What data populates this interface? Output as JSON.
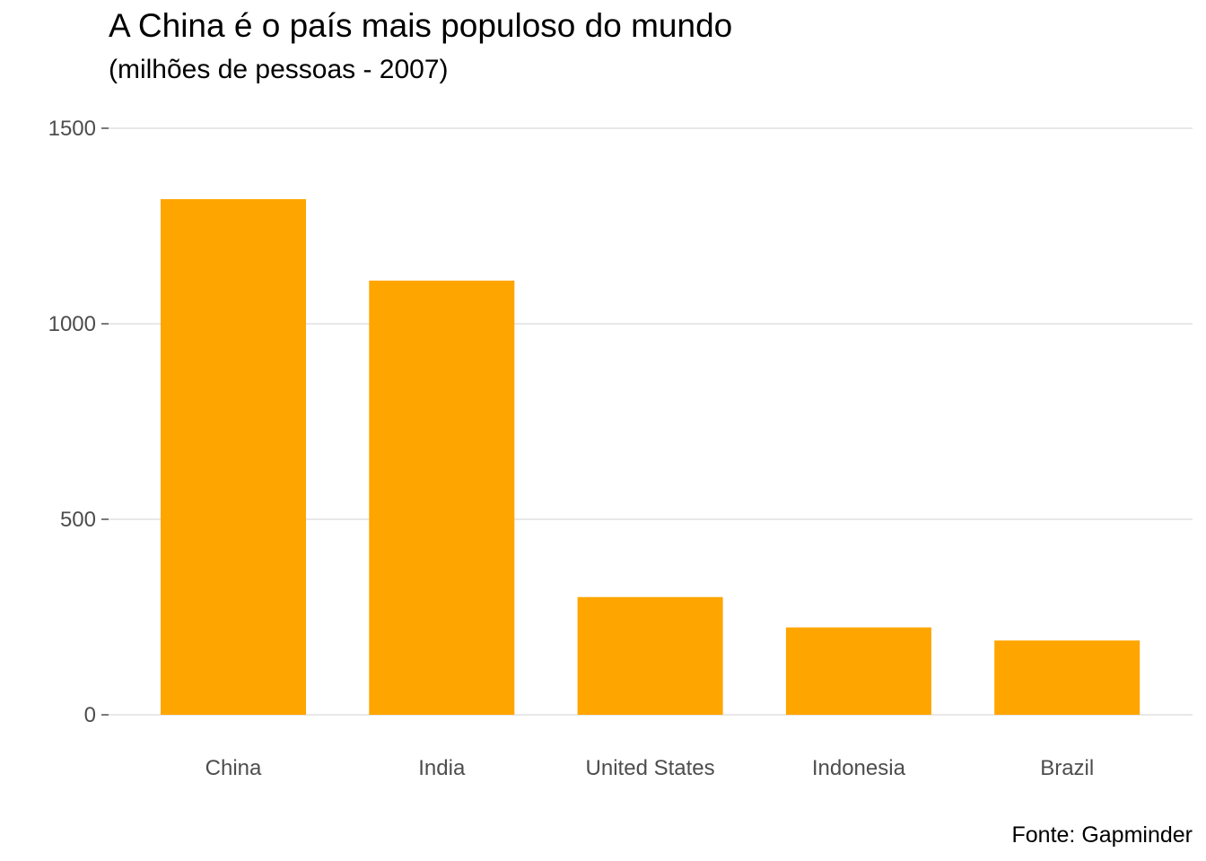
{
  "title": "A China é o país mais populoso do mundo",
  "subtitle": "(milhões de pessoas - 2007)",
  "caption": "Fonte: Gapminder",
  "colors": {
    "bar": "#FFA500",
    "grid": "#d9d9d9",
    "tick_text": "#4d4d4d"
  },
  "chart_data": {
    "type": "bar",
    "title": "A China é o país mais populoso do mundo",
    "subtitle": "(milhões de pessoas - 2007)",
    "categories": [
      "China",
      "India",
      "United States",
      "Indonesia",
      "Brazil"
    ],
    "values": [
      1318.7,
      1110.4,
      301.1,
      223.5,
      190.0
    ],
    "xlabel": "",
    "ylabel": "",
    "ylim": [
      0,
      1500
    ],
    "yticks": [
      0,
      500,
      1000,
      1500
    ],
    "ytick_labels": [
      "0",
      "500",
      "1000",
      "1500"
    ],
    "grid": "horizontal major",
    "legend": "none"
  }
}
